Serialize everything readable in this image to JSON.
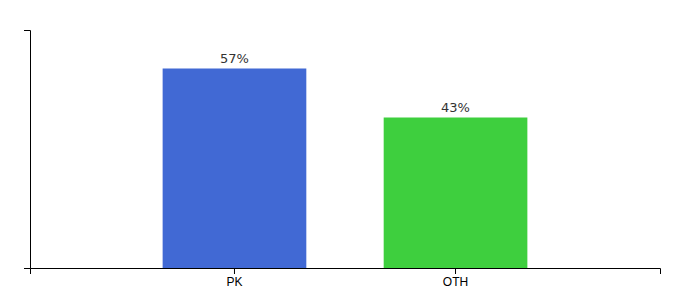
{
  "chart_data": {
    "type": "bar",
    "categories": [
      "PK",
      "OTH"
    ],
    "values": [
      57,
      43
    ],
    "value_labels": [
      "57%",
      "43%"
    ],
    "colors": [
      "#4169d4",
      "#3ecf3e"
    ],
    "ylim": [
      0,
      68
    ],
    "data_labels": true,
    "tick_labels": "x"
  }
}
